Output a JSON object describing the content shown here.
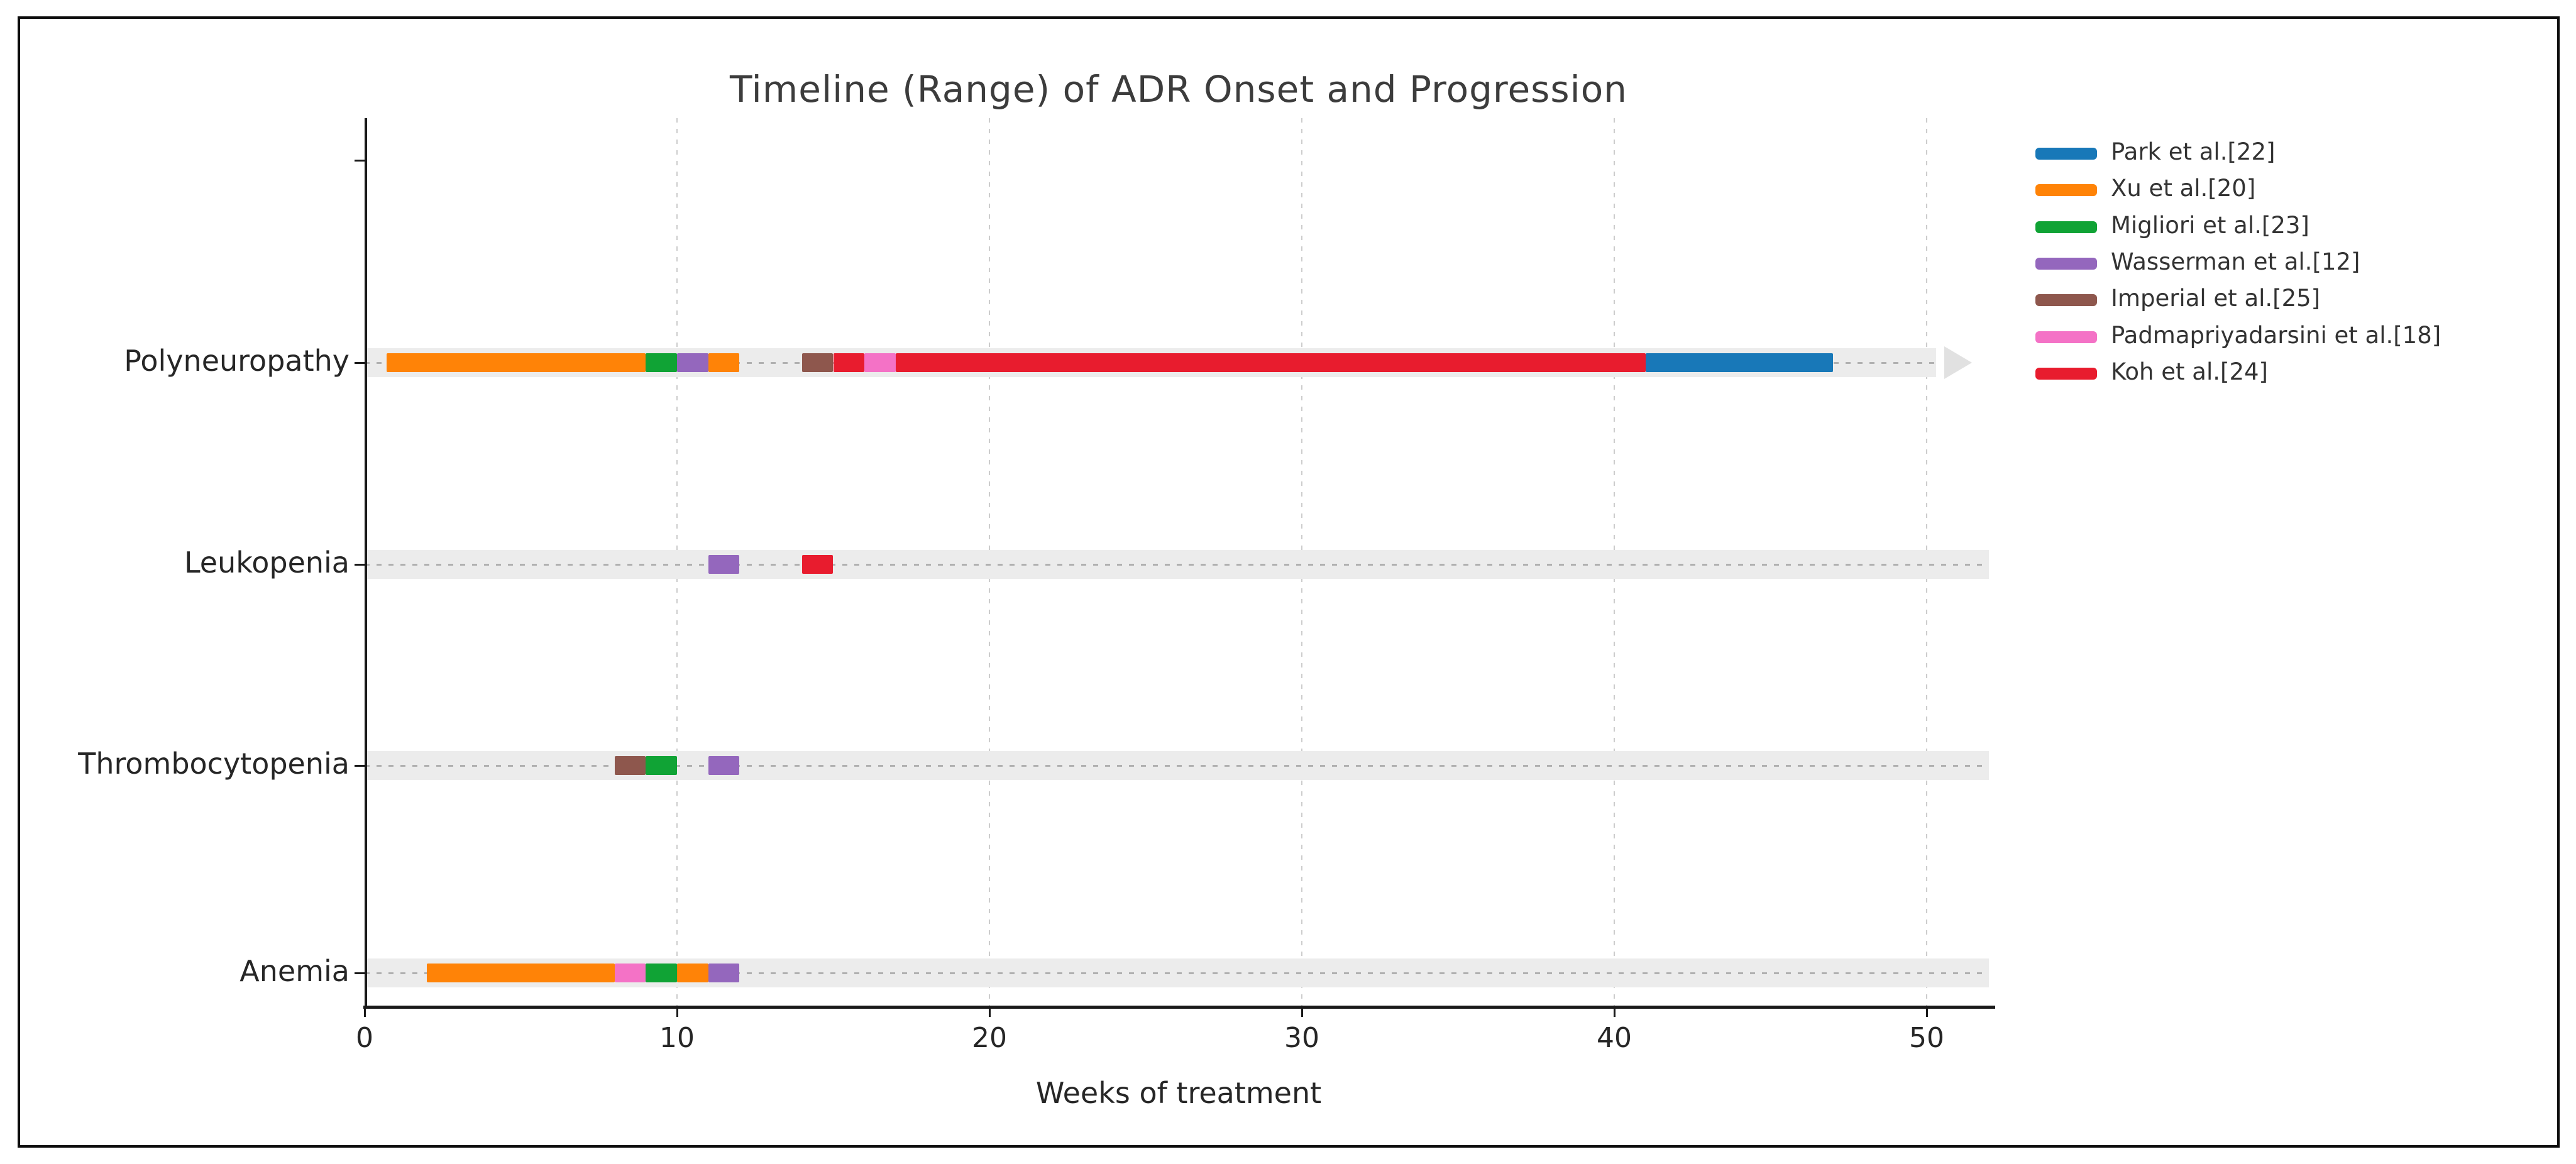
{
  "chart_data": {
    "type": "timeline_range_gantt",
    "title": "Timeline (Range) of ADR Onset and Progression",
    "xlabel": "Weeks of treatment",
    "x_ticks": [
      0,
      10,
      20,
      30,
      40,
      50
    ],
    "x_range": [
      0,
      52
    ],
    "grid": "vertical-dashed",
    "legend_position": "right",
    "categories": [
      "Polyneuropathy",
      "Leukopenia",
      "Thrombocytopenia",
      "Anemia"
    ],
    "rows": [
      {
        "label": "Polyneuropathy",
        "band_start": 0,
        "band_end": 50.3
      },
      {
        "label": "Leukopenia",
        "band_start": 0,
        "band_end": 52
      },
      {
        "label": "Thrombocytopenia",
        "band_start": 0,
        "band_end": 52
      },
      {
        "label": "Anemia",
        "band_start": 0,
        "band_end": 52
      }
    ],
    "studies": [
      {
        "name": "Park et al.[22]",
        "color": "#1878b8"
      },
      {
        "name": "Xu et al.[20]",
        "color": "#ff8307"
      },
      {
        "name": "Migliori et al.[23]",
        "color": "#10a335"
      },
      {
        "name": "Wasserman et al.[12]",
        "color": "#9467bd"
      },
      {
        "name": "Imperial et al.[25]",
        "color": "#8e574d"
      },
      {
        "name": "Padmapriyadarsini et al.[18]",
        "color": "#f472c6"
      },
      {
        "name": "Koh et al.[24]",
        "color": "#e81c2e"
      }
    ],
    "segments": [
      {
        "category": "Polyneuropathy",
        "study": "Xu et al.[20]",
        "start": 0.7,
        "end": 9
      },
      {
        "category": "Polyneuropathy",
        "study": "Migliori et al.[23]",
        "start": 9,
        "end": 10
      },
      {
        "category": "Polyneuropathy",
        "study": "Wasserman et al.[12]",
        "start": 10,
        "end": 11
      },
      {
        "category": "Polyneuropathy",
        "study": "Xu et al.[20]",
        "start": 11,
        "end": 12
      },
      {
        "category": "Polyneuropathy",
        "study": "Imperial et al.[25]",
        "start": 14,
        "end": 15
      },
      {
        "category": "Polyneuropathy",
        "study": "Koh et al.[24]",
        "start": 15,
        "end": 16
      },
      {
        "category": "Polyneuropathy",
        "study": "Padmapriyadarsini et al.[18]",
        "start": 16,
        "end": 17
      },
      {
        "category": "Polyneuropathy",
        "study": "Koh et al.[24]",
        "start": 17,
        "end": 41
      },
      {
        "category": "Polyneuropathy",
        "study": "Park et al.[22]",
        "start": 41,
        "end": 47
      },
      {
        "category": "Leukopenia",
        "study": "Wasserman et al.[12]",
        "start": 11,
        "end": 12
      },
      {
        "category": "Leukopenia",
        "study": "Koh et al.[24]",
        "start": 14,
        "end": 15
      },
      {
        "category": "Thrombocytopenia",
        "study": "Imperial et al.[25]",
        "start": 8,
        "end": 9
      },
      {
        "category": "Thrombocytopenia",
        "study": "Migliori et al.[23]",
        "start": 9,
        "end": 10
      },
      {
        "category": "Thrombocytopenia",
        "study": "Wasserman et al.[12]",
        "start": 11,
        "end": 12
      },
      {
        "category": "Anemia",
        "study": "Xu et al.[20]",
        "start": 2,
        "end": 8
      },
      {
        "category": "Anemia",
        "study": "Padmapriyadarsini et al.[18]",
        "start": 8,
        "end": 9
      },
      {
        "category": "Anemia",
        "study": "Migliori et al.[23]",
        "start": 9,
        "end": 10
      },
      {
        "category": "Anemia",
        "study": "Xu et al.[20]",
        "start": 10,
        "end": 11
      },
      {
        "category": "Anemia",
        "study": "Wasserman et al.[12]",
        "start": 11,
        "end": 12
      }
    ],
    "continuation_arrow": {
      "category": "Polyneuropathy",
      "week": 51
    }
  }
}
